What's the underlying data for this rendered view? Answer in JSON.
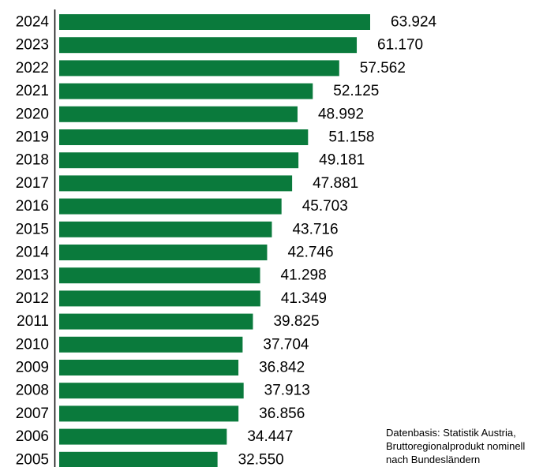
{
  "chart_data": {
    "type": "bar",
    "orientation": "horizontal",
    "categories": [
      "2024",
      "2023",
      "2022",
      "2021",
      "2020",
      "2019",
      "2018",
      "2017",
      "2016",
      "2015",
      "2014",
      "2013",
      "2012",
      "2011",
      "2010",
      "2009",
      "2008",
      "2007",
      "2006",
      "2005"
    ],
    "values": [
      63924,
      61170,
      57562,
      52125,
      48992,
      51158,
      49181,
      47881,
      45703,
      43716,
      42746,
      41298,
      41349,
      39825,
      37704,
      36842,
      37913,
      36856,
      34447,
      32550
    ],
    "value_labels": [
      "63.924",
      "61.170",
      "57.562",
      "52.125",
      "48.992",
      "51.158",
      "49.181",
      "47.881",
      "45.703",
      "43.716",
      "42.746",
      "41.298",
      "41.349",
      "39.825",
      "37.704",
      "36.842",
      "37.913",
      "36.856",
      "34.447",
      "32.550"
    ],
    "xlim": [
      0,
      63924
    ],
    "bar_color": "#0a7a3c",
    "grid": false,
    "legend": "none"
  },
  "source_note": {
    "line1": "Datenbasis: Statistik Austria,",
    "line2": "Bruttoregionalprodukt nominell",
    "line3": "nach Bundesländern"
  }
}
